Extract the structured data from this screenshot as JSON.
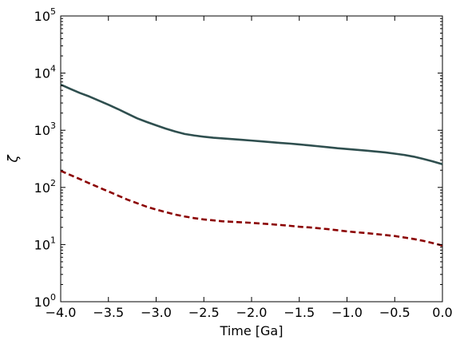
{
  "chart_data": {
    "type": "line",
    "title": "",
    "xlabel": "Time  [Ga]",
    "ylabel": "ζ",
    "xlim": [
      -4.0,
      0.0
    ],
    "ylim": [
      1,
      100000
    ],
    "yscale": "log",
    "grid": false,
    "legend": "none",
    "x_ticks": [
      -4.0,
      -3.5,
      -3.0,
      -2.5,
      -2.0,
      -1.5,
      -1.0,
      -0.5,
      0.0
    ],
    "x_tick_labels": [
      "−4.0",
      "−3.5",
      "−3.0",
      "−2.5",
      "−2.0",
      "−1.5",
      "−1.0",
      "−0.5",
      "0.0"
    ],
    "y_ticks": [
      1,
      10,
      100,
      1000,
      10000,
      100000
    ],
    "y_tick_labels": [
      {
        "base": "10",
        "exp": "0"
      },
      {
        "base": "10",
        "exp": "1"
      },
      {
        "base": "10",
        "exp": "2"
      },
      {
        "base": "10",
        "exp": "3"
      },
      {
        "base": "10",
        "exp": "4"
      },
      {
        "base": "10",
        "exp": "5"
      }
    ],
    "series": [
      {
        "style": "solid",
        "color": "#2f4f4f",
        "points": [
          [
            -4.0,
            6300
          ],
          [
            -3.9,
            5300
          ],
          [
            -3.8,
            4500
          ],
          [
            -3.7,
            3900
          ],
          [
            -3.6,
            3300
          ],
          [
            -3.5,
            2800
          ],
          [
            -3.4,
            2350
          ],
          [
            -3.3,
            1950
          ],
          [
            -3.2,
            1620
          ],
          [
            -3.1,
            1400
          ],
          [
            -3.0,
            1220
          ],
          [
            -2.9,
            1070
          ],
          [
            -2.8,
            950
          ],
          [
            -2.7,
            860
          ],
          [
            -2.6,
            810
          ],
          [
            -2.5,
            770
          ],
          [
            -2.4,
            740
          ],
          [
            -2.3,
            720
          ],
          [
            -2.2,
            700
          ],
          [
            -2.1,
            680
          ],
          [
            -2.0,
            660
          ],
          [
            -1.9,
            640
          ],
          [
            -1.8,
            620
          ],
          [
            -1.7,
            600
          ],
          [
            -1.6,
            585
          ],
          [
            -1.5,
            565
          ],
          [
            -1.4,
            545
          ],
          [
            -1.3,
            525
          ],
          [
            -1.2,
            505
          ],
          [
            -1.1,
            485
          ],
          [
            -1.0,
            470
          ],
          [
            -0.9,
            455
          ],
          [
            -0.8,
            440
          ],
          [
            -0.7,
            425
          ],
          [
            -0.6,
            410
          ],
          [
            -0.5,
            390
          ],
          [
            -0.4,
            370
          ],
          [
            -0.3,
            345
          ],
          [
            -0.2,
            315
          ],
          [
            -0.1,
            285
          ],
          [
            0.0,
            255
          ]
        ]
      },
      {
        "style": "dashed",
        "color": "#8b0000",
        "points": [
          [
            -4.0,
            195
          ],
          [
            -3.9,
            165
          ],
          [
            -3.8,
            140
          ],
          [
            -3.7,
            118
          ],
          [
            -3.6,
            100
          ],
          [
            -3.5,
            85
          ],
          [
            -3.4,
            72
          ],
          [
            -3.3,
            61
          ],
          [
            -3.2,
            53
          ],
          [
            -3.1,
            46
          ],
          [
            -3.0,
            41
          ],
          [
            -2.9,
            37
          ],
          [
            -2.8,
            33.5
          ],
          [
            -2.7,
            31
          ],
          [
            -2.6,
            29
          ],
          [
            -2.5,
            27.5
          ],
          [
            -2.4,
            26.5
          ],
          [
            -2.3,
            25.5
          ],
          [
            -2.2,
            25
          ],
          [
            -2.1,
            24.5
          ],
          [
            -2.0,
            24
          ],
          [
            -1.9,
            23.3
          ],
          [
            -1.8,
            22.7
          ],
          [
            -1.7,
            22
          ],
          [
            -1.6,
            21.3
          ],
          [
            -1.5,
            20.5
          ],
          [
            -1.4,
            20
          ],
          [
            -1.3,
            19.3
          ],
          [
            -1.2,
            18.6
          ],
          [
            -1.1,
            17.8
          ],
          [
            -1.0,
            17
          ],
          [
            -0.9,
            16.4
          ],
          [
            -0.8,
            15.9
          ],
          [
            -0.7,
            15.3
          ],
          [
            -0.6,
            14.7
          ],
          [
            -0.5,
            14.1
          ],
          [
            -0.4,
            13.3
          ],
          [
            -0.3,
            12.5
          ],
          [
            -0.2,
            11.6
          ],
          [
            -0.1,
            10.6
          ],
          [
            0.0,
            9.6
          ]
        ]
      }
    ]
  }
}
